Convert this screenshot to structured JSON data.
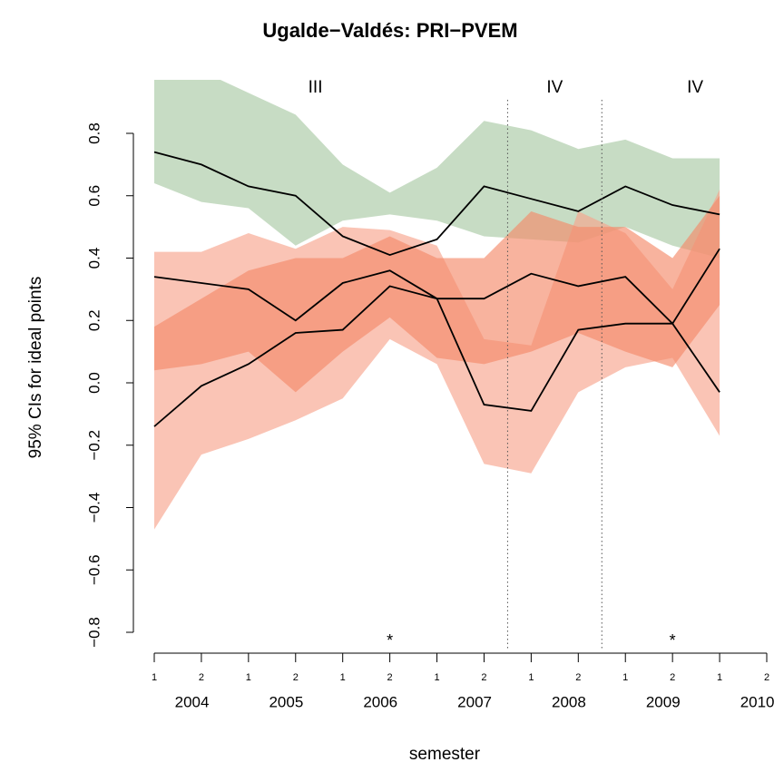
{
  "chart_data": {
    "type": "line",
    "title": "Ugalde−Valdés: PRI−PVEM",
    "xlabel": "semester",
    "ylabel": "95% CIs for ideal points",
    "x": [
      2004,
      2004.5,
      2005,
      2005.5,
      2006,
      2006.5,
      2007,
      2007.5,
      2008,
      2008.5,
      2009,
      2009.5,
      2010
    ],
    "series": [
      {
        "color": "#a9c9a4",
        "values": [
          0.74,
          0.7,
          0.63,
          0.6,
          0.47,
          0.41,
          0.46,
          0.63,
          0.59,
          0.55,
          0.63,
          0.57,
          0.54
        ],
        "upper": [
          1.0,
          1.0,
          0.93,
          0.86,
          0.7,
          0.61,
          0.69,
          0.84,
          0.81,
          0.75,
          0.78,
          0.72,
          0.72
        ],
        "lower": [
          0.64,
          0.58,
          0.56,
          0.44,
          0.52,
          0.54,
          0.52,
          0.47,
          0.46,
          0.45,
          0.5,
          0.44,
          0.4
        ]
      },
      {
        "color": "#f7a58d",
        "values": [
          0.34,
          0.32,
          0.3,
          0.2,
          0.32,
          0.36,
          0.27,
          -0.07,
          -0.09,
          0.17,
          0.19,
          0.19,
          0.43
        ],
        "upper": [
          0.42,
          0.42,
          0.48,
          0.43,
          0.5,
          0.49,
          0.44,
          0.14,
          0.12,
          0.55,
          0.48,
          0.3,
          0.62
        ],
        "lower": [
          -0.47,
          -0.23,
          -0.18,
          -0.12,
          -0.05,
          0.14,
          0.06,
          -0.26,
          -0.29,
          -0.03,
          0.05,
          0.08,
          -0.17
        ]
      },
      {
        "color": "#f58a6a",
        "values": [
          -0.14,
          -0.01,
          0.06,
          0.16,
          0.17,
          0.31,
          0.27,
          0.27,
          0.35,
          0.31,
          0.34,
          0.19,
          -0.03
        ],
        "upper": [
          0.18,
          0.27,
          0.36,
          0.4,
          0.4,
          0.47,
          0.4,
          0.4,
          0.55,
          0.5,
          0.5,
          0.4,
          0.6
        ],
        "lower": [
          0.04,
          0.06,
          0.1,
          -0.03,
          0.1,
          0.21,
          0.08,
          0.06,
          0.1,
          0.16,
          0.1,
          0.05,
          0.25
        ]
      }
    ],
    "xlim": [
      2004,
      2010.5
    ],
    "ylim": [
      -0.8,
      0.8
    ],
    "yticks": [
      {
        "value": -0.8,
        "label": "−0.8"
      },
      {
        "value": -0.6,
        "label": "−0.6"
      },
      {
        "value": -0.4,
        "label": "−0.4"
      },
      {
        "value": -0.2,
        "label": "−0.2"
      },
      {
        "value": 0,
        "label": "0.0"
      },
      0.2,
      0.4,
      0.6,
      0.8
    ],
    "xticks": [
      {
        "value": 2004,
        "label": "1"
      },
      {
        "value": 2004.5,
        "label": "2"
      },
      {
        "value": 2005,
        "label": "1"
      },
      {
        "value": 2005.5,
        "label": "2"
      },
      {
        "value": 2006,
        "label": "1"
      },
      {
        "value": 2006.5,
        "label": "2"
      },
      {
        "value": 2007,
        "label": "1"
      },
      {
        "value": 2007.5,
        "label": "2"
      },
      {
        "value": 2008,
        "label": "1"
      },
      {
        "value": 2008.5,
        "label": "2"
      },
      {
        "value": 2009,
        "label": "1"
      },
      {
        "value": 2009.5,
        "label": "2"
      },
      {
        "value": 2010,
        "label": "1"
      },
      {
        "value": 2010.5,
        "label": "2"
      }
    ],
    "year_labels": [
      {
        "value": 2004.2,
        "label": "2004"
      },
      {
        "value": 2004.7,
        "label": "2005"
      },
      {
        "value": 2005.2,
        "label": "2006"
      },
      {
        "value": 2005.7,
        "label": "2007"
      },
      {
        "value": 2006.2,
        "label": "2008"
      },
      {
        "value": 2006.7,
        "label": "2009"
      },
      {
        "value": 2007.2,
        "label": "2010"
      }
    ],
    "vlines": [
      2007.75,
      2008.75
    ],
    "annotations": [
      {
        "x": 2005.71,
        "text": "III"
      },
      {
        "x": 2008.25,
        "text": "IV"
      },
      {
        "x": 2009.74,
        "text": "IV"
      }
    ],
    "stars": [
      {
        "x": 2006.5,
        "text": "*"
      },
      {
        "x": 2009.5,
        "text": "*"
      }
    ]
  }
}
